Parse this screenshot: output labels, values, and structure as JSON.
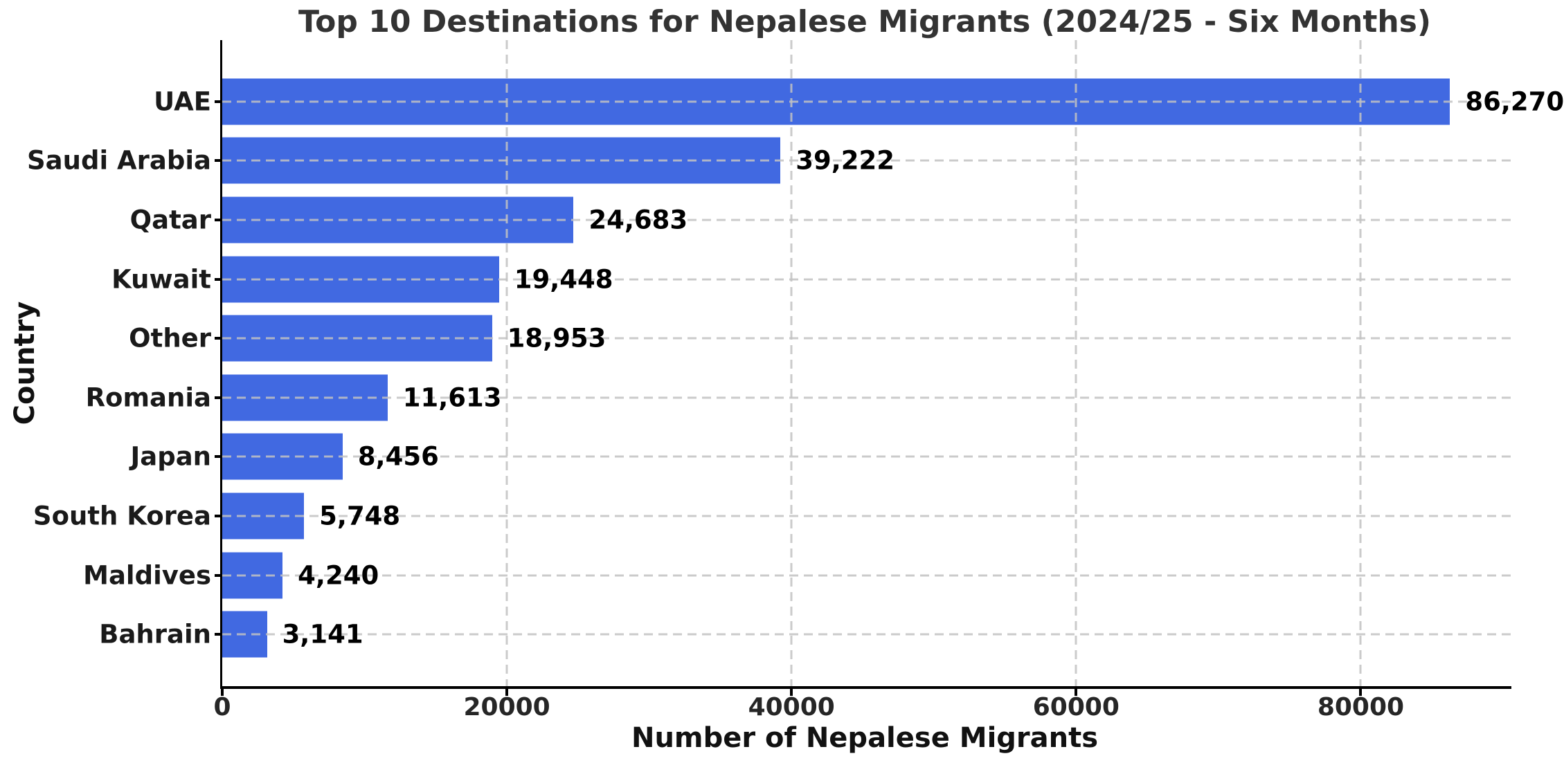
{
  "chart_data": {
    "type": "bar",
    "orientation": "horizontal",
    "title": "Top 10 Destinations for Nepalese Migrants (2024/25 - Six Months)",
    "xlabel": "Number of Nepalese Migrants",
    "ylabel": "Country",
    "categories": [
      "UAE",
      "Saudi Arabia",
      "Qatar",
      "Kuwait",
      "Other",
      "Romania",
      "Japan",
      "South Korea",
      "Maldives",
      "Bahrain"
    ],
    "values": [
      86270,
      39222,
      24683,
      19448,
      18953,
      11613,
      8456,
      5748,
      4240,
      3141
    ],
    "value_labels": [
      "86,270",
      "39,222",
      "24,683",
      "19,448",
      "18,953",
      "11,613",
      "8,456",
      "5,748",
      "4,240",
      "3,141"
    ],
    "xlim": [
      0,
      90583
    ],
    "xticks": [
      0,
      20000,
      40000,
      60000,
      80000
    ],
    "xtick_labels": [
      "0",
      "20000",
      "40000",
      "60000",
      "80000"
    ],
    "grid": "both-dashed",
    "legend": "none",
    "colors": {
      "bar": "#4169E1",
      "grid": "#c2c2c2",
      "title": "#333333",
      "text": "#111111",
      "spine": "#000000"
    }
  }
}
